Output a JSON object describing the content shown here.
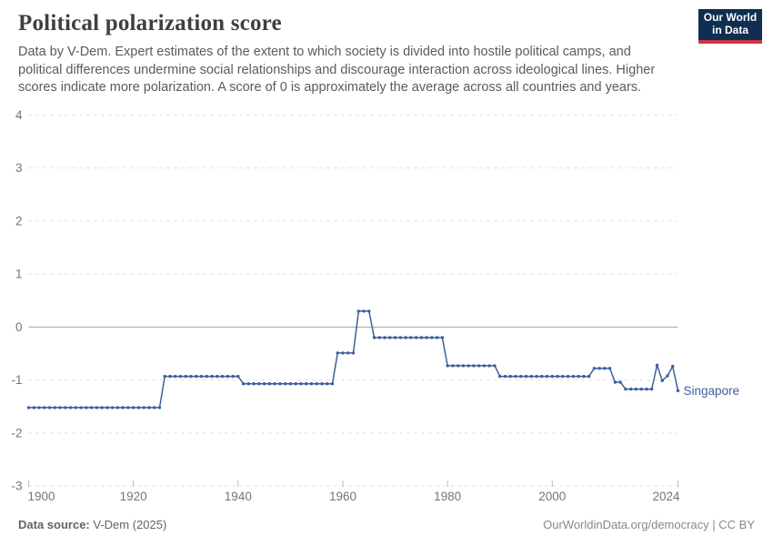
{
  "header": {
    "title": "Political polarization score",
    "subtitle": "Data by V-Dem. Expert estimates of the extent to which society is divided into hostile political camps, and political differences undermine social relationships and discourage interaction across ideological lines. Higher scores indicate more polarization. A score of 0 is approximately the average across all countries and years.",
    "logo": {
      "line1": "Our World",
      "line2": "in Data",
      "bg_color": "#0f2e52",
      "accent_color": "#cf3545"
    }
  },
  "footer": {
    "source_label": "Data source:",
    "source_value": " V-Dem (2025)",
    "right_text": "OurWorldinData.org/democracy | CC BY"
  },
  "chart_data": {
    "type": "line",
    "title": "Political polarization score",
    "xlabel": "",
    "ylabel": "",
    "xlim": [
      1900,
      2024
    ],
    "ylim": [
      -3,
      4
    ],
    "x_ticks": [
      1900,
      1920,
      1940,
      1960,
      1980,
      2000,
      2024
    ],
    "y_ticks": [
      4,
      3,
      2,
      1,
      0,
      -1,
      -2,
      -3
    ],
    "grid": "horizontal dashed lines, solid line at 0",
    "legend_position": "label at end of line",
    "line_color": "#3d5f9e",
    "grid_color": "#dcdcdc",
    "zero_line_color": "#a3a3a3",
    "axis_text_color": "#757575",
    "series": [
      {
        "name": "Singapore",
        "points": [
          [
            1900,
            -1.52
          ],
          [
            1901,
            -1.52
          ],
          [
            1902,
            -1.52
          ],
          [
            1903,
            -1.52
          ],
          [
            1904,
            -1.52
          ],
          [
            1905,
            -1.52
          ],
          [
            1906,
            -1.52
          ],
          [
            1907,
            -1.52
          ],
          [
            1908,
            -1.52
          ],
          [
            1909,
            -1.52
          ],
          [
            1910,
            -1.52
          ],
          [
            1911,
            -1.52
          ],
          [
            1912,
            -1.52
          ],
          [
            1913,
            -1.52
          ],
          [
            1914,
            -1.52
          ],
          [
            1915,
            -1.52
          ],
          [
            1916,
            -1.52
          ],
          [
            1917,
            -1.52
          ],
          [
            1918,
            -1.52
          ],
          [
            1919,
            -1.52
          ],
          [
            1920,
            -1.52
          ],
          [
            1921,
            -1.52
          ],
          [
            1922,
            -1.52
          ],
          [
            1923,
            -1.52
          ],
          [
            1924,
            -1.52
          ],
          [
            1925,
            -1.52
          ],
          [
            1926,
            -0.93
          ],
          [
            1927,
            -0.93
          ],
          [
            1928,
            -0.93
          ],
          [
            1929,
            -0.93
          ],
          [
            1930,
            -0.93
          ],
          [
            1931,
            -0.93
          ],
          [
            1932,
            -0.93
          ],
          [
            1933,
            -0.93
          ],
          [
            1934,
            -0.93
          ],
          [
            1935,
            -0.93
          ],
          [
            1936,
            -0.93
          ],
          [
            1937,
            -0.93
          ],
          [
            1938,
            -0.93
          ],
          [
            1939,
            -0.93
          ],
          [
            1940,
            -0.93
          ],
          [
            1941,
            -1.07
          ],
          [
            1942,
            -1.07
          ],
          [
            1943,
            -1.07
          ],
          [
            1944,
            -1.07
          ],
          [
            1945,
            -1.07
          ],
          [
            1946,
            -1.07
          ],
          [
            1947,
            -1.07
          ],
          [
            1948,
            -1.07
          ],
          [
            1949,
            -1.07
          ],
          [
            1950,
            -1.07
          ],
          [
            1951,
            -1.07
          ],
          [
            1952,
            -1.07
          ],
          [
            1953,
            -1.07
          ],
          [
            1954,
            -1.07
          ],
          [
            1955,
            -1.07
          ],
          [
            1956,
            -1.07
          ],
          [
            1957,
            -1.07
          ],
          [
            1958,
            -1.07
          ],
          [
            1959,
            -0.49
          ],
          [
            1960,
            -0.49
          ],
          [
            1961,
            -0.49
          ],
          [
            1962,
            -0.49
          ],
          [
            1963,
            0.3
          ],
          [
            1964,
            0.3
          ],
          [
            1965,
            0.3
          ],
          [
            1966,
            -0.2
          ],
          [
            1967,
            -0.2
          ],
          [
            1968,
            -0.2
          ],
          [
            1969,
            -0.2
          ],
          [
            1970,
            -0.2
          ],
          [
            1971,
            -0.2
          ],
          [
            1972,
            -0.2
          ],
          [
            1973,
            -0.2
          ],
          [
            1974,
            -0.2
          ],
          [
            1975,
            -0.2
          ],
          [
            1976,
            -0.2
          ],
          [
            1977,
            -0.2
          ],
          [
            1978,
            -0.2
          ],
          [
            1979,
            -0.2
          ],
          [
            1980,
            -0.73
          ],
          [
            1981,
            -0.73
          ],
          [
            1982,
            -0.73
          ],
          [
            1983,
            -0.73
          ],
          [
            1984,
            -0.73
          ],
          [
            1985,
            -0.73
          ],
          [
            1986,
            -0.73
          ],
          [
            1987,
            -0.73
          ],
          [
            1988,
            -0.73
          ],
          [
            1989,
            -0.73
          ],
          [
            1990,
            -0.93
          ],
          [
            1991,
            -0.93
          ],
          [
            1992,
            -0.93
          ],
          [
            1993,
            -0.93
          ],
          [
            1994,
            -0.93
          ],
          [
            1995,
            -0.93
          ],
          [
            1996,
            -0.93
          ],
          [
            1997,
            -0.93
          ],
          [
            1998,
            -0.93
          ],
          [
            1999,
            -0.93
          ],
          [
            2000,
            -0.93
          ],
          [
            2001,
            -0.93
          ],
          [
            2002,
            -0.93
          ],
          [
            2003,
            -0.93
          ],
          [
            2004,
            -0.93
          ],
          [
            2005,
            -0.93
          ],
          [
            2006,
            -0.93
          ],
          [
            2007,
            -0.93
          ],
          [
            2008,
            -0.78
          ],
          [
            2009,
            -0.78
          ],
          [
            2010,
            -0.78
          ],
          [
            2011,
            -0.78
          ],
          [
            2012,
            -1.04
          ],
          [
            2013,
            -1.04
          ],
          [
            2014,
            -1.17
          ],
          [
            2015,
            -1.17
          ],
          [
            2016,
            -1.17
          ],
          [
            2017,
            -1.17
          ],
          [
            2018,
            -1.17
          ],
          [
            2019,
            -1.17
          ],
          [
            2020,
            -0.72
          ],
          [
            2021,
            -1.01
          ],
          [
            2022,
            -0.92
          ],
          [
            2023,
            -0.74
          ],
          [
            2024,
            -1.2
          ]
        ]
      }
    ]
  }
}
